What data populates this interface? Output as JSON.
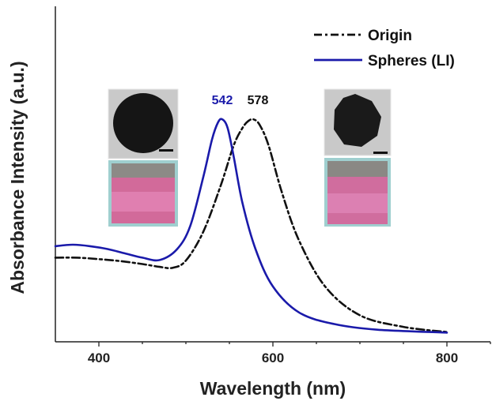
{
  "chart_data": {
    "type": "line",
    "title": "",
    "xlabel": "Wavelength (nm)",
    "ylabel": "Absorbance Intensity (a.u.)",
    "xlim": [
      350,
      850
    ],
    "ylim": [
      0,
      1.0
    ],
    "x_ticks": [
      400,
      600,
      800
    ],
    "x_tick_labels": [
      "400",
      "600",
      "800"
    ],
    "y_ticks": [],
    "grid": false,
    "legend": "top-right",
    "series": [
      {
        "name": "Origin",
        "color": "#111111",
        "style": "dash-dot",
        "x": [
          350,
          375,
          400,
          425,
          450,
          470,
          485,
          500,
          520,
          540,
          555,
          565,
          572,
          578,
          585,
          595,
          610,
          630,
          660,
          700,
          750,
          800
        ],
        "y": [
          0.27,
          0.27,
          0.265,
          0.258,
          0.248,
          0.238,
          0.235,
          0.26,
          0.36,
          0.52,
          0.66,
          0.72,
          0.745,
          0.75,
          0.73,
          0.66,
          0.5,
          0.33,
          0.17,
          0.07,
          0.03,
          0.012
        ]
      },
      {
        "name": "Spheres (LI)",
        "color": "#1a1aaa",
        "style": "solid",
        "x": [
          350,
          370,
          390,
          410,
          430,
          450,
          470,
          490,
          505,
          520,
          530,
          537,
          542,
          548,
          555,
          565,
          580,
          600,
          630,
          670,
          720,
          800
        ],
        "y": [
          0.31,
          0.315,
          0.31,
          0.3,
          0.285,
          0.27,
          0.262,
          0.3,
          0.38,
          0.55,
          0.68,
          0.74,
          0.75,
          0.72,
          0.62,
          0.46,
          0.3,
          0.17,
          0.08,
          0.04,
          0.02,
          0.01
        ]
      }
    ],
    "annotations": [
      {
        "text": "542",
        "color": "#1a1aaa"
      },
      {
        "text": "578",
        "color": "#111111"
      }
    ]
  }
}
